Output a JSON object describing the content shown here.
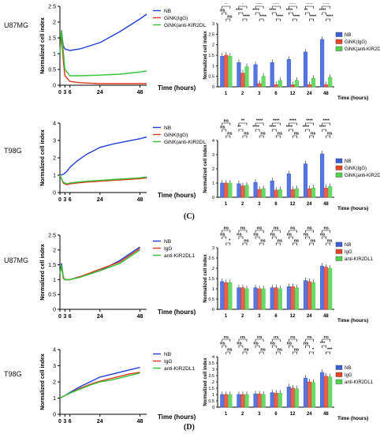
{
  "section_labels": [
    "(C)",
    "(D)"
  ],
  "chart_data": [
    {
      "id": "C1-line",
      "type": "line",
      "row_label": "U87MG",
      "xlabel": "Time (hours)",
      "ylabel": "Normalized cell index",
      "xticks": [
        0,
        3,
        6,
        24,
        48
      ],
      "yticks": [
        0,
        0.5,
        1,
        1.5,
        2,
        2.5
      ],
      "xlim": [
        0,
        52
      ],
      "ylim": [
        0,
        2.5
      ],
      "series": [
        {
          "name": "NB",
          "color": "#1f3fd6",
          "x": [
            0,
            1,
            2,
            3,
            6,
            12,
            24,
            36,
            48,
            52
          ],
          "y": [
            1.0,
            1.7,
            1.25,
            1.15,
            1.1,
            1.15,
            1.35,
            1.7,
            2.1,
            2.25
          ]
        },
        {
          "name": "GiNK(IgG)",
          "color": "#e03a1e",
          "x": [
            0,
            1,
            2,
            3,
            6,
            12,
            24,
            36,
            48,
            52
          ],
          "y": [
            1.0,
            1.6,
            0.8,
            0.3,
            0.12,
            0.08,
            0.05,
            0.05,
            0.05,
            0.05
          ]
        },
        {
          "name": "GiNK(anti-KIR2DL1)",
          "color": "#35c235",
          "x": [
            0,
            1,
            2,
            3,
            6,
            12,
            24,
            36,
            48,
            52
          ],
          "y": [
            1.0,
            1.75,
            1.1,
            0.5,
            0.3,
            0.3,
            0.32,
            0.35,
            0.42,
            0.45
          ]
        }
      ]
    },
    {
      "id": "C1-bar",
      "type": "bar",
      "ylabel": "Normalized cell index",
      "xlabel": "Time (hours)",
      "categories": [
        "1",
        "2",
        "3",
        "6",
        "12",
        "24",
        "48"
      ],
      "yticks": [
        0,
        0.5,
        1,
        1.5,
        2,
        2.5,
        3
      ],
      "ylim": [
        0,
        3
      ],
      "sig_top": [
        "**",
        "*",
        "****",
        "****",
        "****",
        "****",
        "****"
      ],
      "sig_low": [
        "ns",
        "****",
        "****",
        "****",
        "****",
        "****",
        "****"
      ],
      "sig_mid": [
        "ns",
        "****",
        "****",
        "****",
        "****",
        "**",
        "****"
      ],
      "series": [
        {
          "name": "NB",
          "color": "#3a5ed8",
          "values": [
            1.45,
            1.15,
            1.05,
            1.15,
            1.3,
            1.65,
            2.25
          ]
        },
        {
          "name": "GiNK(IgG)",
          "color": "#e8442a",
          "values": [
            1.5,
            0.65,
            0.15,
            0.1,
            0.1,
            0.1,
            0.1
          ]
        },
        {
          "name": "GiNK(anti-KIR2DL1)",
          "color": "#4fd34f",
          "values": [
            1.45,
            0.95,
            0.5,
            0.3,
            0.3,
            0.4,
            0.45
          ]
        }
      ]
    },
    {
      "id": "C2-line",
      "type": "line",
      "row_label": "T98G",
      "xlabel": "Time (hours)",
      "ylabel": "Normalized cell index",
      "xticks": [
        0,
        3,
        6,
        24,
        48
      ],
      "yticks": [
        0,
        1,
        2,
        3,
        4
      ],
      "xlim": [
        0,
        52
      ],
      "ylim": [
        0,
        4
      ],
      "series": [
        {
          "name": "NB",
          "color": "#1f3fd6",
          "x": [
            0,
            2,
            4,
            6,
            10,
            16,
            24,
            32,
            40,
            48,
            52
          ],
          "y": [
            1.0,
            1.05,
            1.2,
            1.45,
            1.8,
            2.2,
            2.6,
            2.8,
            2.95,
            3.1,
            3.2
          ]
        },
        {
          "name": "GiNK(IgG)",
          "color": "#e03a1e",
          "x": [
            0,
            2,
            4,
            6,
            10,
            16,
            24,
            32,
            40,
            48,
            52
          ],
          "y": [
            1.0,
            0.55,
            0.45,
            0.5,
            0.55,
            0.6,
            0.65,
            0.7,
            0.75,
            0.8,
            0.85
          ]
        },
        {
          "name": "GiNK(anti-KIR2DL1)",
          "color": "#35c235",
          "x": [
            0,
            2,
            4,
            6,
            10,
            16,
            24,
            32,
            40,
            48,
            52
          ],
          "y": [
            1.0,
            0.6,
            0.5,
            0.55,
            0.6,
            0.65,
            0.7,
            0.75,
            0.8,
            0.85,
            0.9
          ]
        }
      ]
    },
    {
      "id": "C2-bar",
      "type": "bar",
      "ylabel": "Normalized cell index",
      "xlabel": "Time (hours)",
      "categories": [
        "1",
        "2",
        "3",
        "6",
        "12",
        "24",
        "48"
      ],
      "yticks": [
        0,
        1,
        2,
        3,
        4
      ],
      "ylim": [
        0,
        4
      ],
      "sig_top": [
        "ns",
        "**",
        "****",
        "****",
        "****",
        "****",
        "****"
      ],
      "sig_low": [
        "ns",
        "ns",
        "ns",
        "ns",
        "ns",
        "ns",
        "ns"
      ],
      "sig_mid": [
        "ns",
        "**",
        "****",
        "****",
        "****",
        "****",
        "****"
      ],
      "series": [
        {
          "name": "NB",
          "color": "#3a5ed8",
          "values": [
            1.0,
            0.95,
            1.05,
            1.15,
            1.65,
            2.35,
            3.05
          ]
        },
        {
          "name": "GiNK(IgG)",
          "color": "#e8442a",
          "values": [
            1.0,
            0.8,
            0.55,
            0.5,
            0.55,
            0.6,
            0.65
          ]
        },
        {
          "name": "GiNK(anti-KIR2DL1)",
          "color": "#4fd34f",
          "values": [
            1.0,
            0.85,
            0.6,
            0.55,
            0.6,
            0.65,
            0.75
          ]
        }
      ]
    },
    {
      "id": "D1-line",
      "type": "line",
      "row_label": "U87MG",
      "xlabel": "Time (hours)",
      "ylabel": "Normalized cell index",
      "xticks": [
        0,
        3,
        6,
        24,
        48
      ],
      "yticks": [
        0,
        0.5,
        1,
        1.5,
        2,
        2.5
      ],
      "xlim": [
        0,
        52
      ],
      "ylim": [
        0,
        2.5
      ],
      "series": [
        {
          "name": "NB",
          "color": "#1f3fd6",
          "x": [
            0,
            1,
            2,
            3,
            6,
            12,
            24,
            36,
            48
          ],
          "y": [
            1.2,
            1.55,
            1.1,
            1.0,
            1.0,
            1.1,
            1.3,
            1.65,
            2.1
          ]
        },
        {
          "name": "IgG",
          "color": "#e03a1e",
          "x": [
            0,
            1,
            2,
            3,
            6,
            12,
            24,
            36,
            48
          ],
          "y": [
            1.2,
            1.45,
            1.05,
            1.0,
            1.0,
            1.1,
            1.35,
            1.6,
            2.05
          ]
        },
        {
          "name": "anti-KIR2DL1",
          "color": "#35c235",
          "x": [
            0,
            1,
            2,
            3,
            6,
            12,
            24,
            36,
            48
          ],
          "y": [
            1.2,
            1.5,
            1.1,
            1.0,
            1.0,
            1.08,
            1.3,
            1.55,
            2.0
          ]
        }
      ]
    },
    {
      "id": "D1-bar",
      "type": "bar",
      "ylabel": "Normalized cell index",
      "xlabel": "Time (hours)",
      "categories": [
        "1",
        "2",
        "3",
        "6",
        "12",
        "24",
        "48"
      ],
      "yticks": [
        0,
        0.5,
        1,
        1.5,
        2,
        2.5,
        3
      ],
      "ylim": [
        0,
        3
      ],
      "sig_top": [
        "ns",
        "ns",
        "ns",
        "ns",
        "ns",
        "ns",
        "ns"
      ],
      "sig_low": [
        "*",
        "ns",
        "ns",
        "ns",
        "ns",
        "ns",
        "ns"
      ],
      "sig_mid": [
        "ns",
        "ns",
        "ns",
        "ns",
        "ns",
        "ns",
        "ns"
      ],
      "series": [
        {
          "name": "NB",
          "color": "#3a5ed8",
          "values": [
            1.35,
            1.05,
            1.05,
            1.05,
            1.1,
            1.4,
            2.1
          ]
        },
        {
          "name": "IgG",
          "color": "#e8442a",
          "values": [
            1.3,
            1.05,
            1.0,
            1.05,
            1.1,
            1.35,
            2.05
          ]
        },
        {
          "name": "anti-KIR2DL1",
          "color": "#4fd34f",
          "values": [
            1.3,
            1.0,
            1.0,
            1.0,
            1.05,
            1.3,
            2.0
          ]
        }
      ]
    },
    {
      "id": "D2-line",
      "type": "line",
      "row_label": "T98G",
      "xlabel": "Time (hours)",
      "ylabel": "Normalized cell index",
      "xticks": [
        0,
        3,
        6,
        24,
        48
      ],
      "yticks": [
        0,
        1,
        2,
        3,
        4
      ],
      "xlim": [
        0,
        52
      ],
      "ylim": [
        0,
        4
      ],
      "series": [
        {
          "name": "NB",
          "color": "#1f3fd6",
          "x": [
            0,
            3,
            6,
            12,
            18,
            24,
            30,
            36,
            42,
            48
          ],
          "y": [
            1.0,
            1.15,
            1.35,
            1.7,
            2.0,
            2.3,
            2.45,
            2.6,
            2.75,
            2.9
          ]
        },
        {
          "name": "IgG",
          "color": "#e03a1e",
          "x": [
            0,
            3,
            6,
            12,
            18,
            24,
            30,
            36,
            42,
            48
          ],
          "y": [
            1.0,
            1.15,
            1.3,
            1.6,
            1.85,
            2.05,
            2.2,
            2.35,
            2.5,
            2.6
          ]
        },
        {
          "name": "anti-KIR2DL1",
          "color": "#35c235",
          "x": [
            0,
            3,
            6,
            12,
            18,
            24,
            30,
            36,
            42,
            48
          ],
          "y": [
            1.0,
            1.15,
            1.3,
            1.55,
            1.8,
            2.0,
            2.1,
            2.25,
            2.4,
            2.55
          ]
        }
      ]
    },
    {
      "id": "D2-bar",
      "type": "bar",
      "ylabel": "Normalized cell index",
      "xlabel": "Time (hours)",
      "categories": [
        "1",
        "2",
        "3",
        "6",
        "12",
        "24",
        "48"
      ],
      "yticks": [
        0,
        0.5,
        1,
        1.5,
        2,
        2.5,
        3,
        3.5,
        4
      ],
      "ylim": [
        0,
        4
      ],
      "sig_top": [
        "ns",
        "ns",
        "ns",
        "ns",
        "ns",
        "ns",
        "ns"
      ],
      "sig_low": [
        "ns",
        "ns",
        "ns",
        "ns",
        "ns",
        "*",
        "***"
      ],
      "sig_mid": [
        "ns",
        "ns",
        "ns",
        "ns",
        "ns",
        "ns",
        "***"
      ],
      "series": [
        {
          "name": "NB",
          "color": "#3a5ed8",
          "values": [
            1.0,
            1.0,
            1.05,
            1.15,
            1.6,
            2.3,
            2.75
          ]
        },
        {
          "name": "IgG",
          "color": "#e8442a",
          "values": [
            1.0,
            1.0,
            1.05,
            1.1,
            1.5,
            2.0,
            2.45
          ]
        },
        {
          "name": "anti-KIR2DL1",
          "color": "#4fd34f",
          "values": [
            1.0,
            1.0,
            1.0,
            1.1,
            1.45,
            1.95,
            2.4
          ]
        }
      ]
    }
  ]
}
